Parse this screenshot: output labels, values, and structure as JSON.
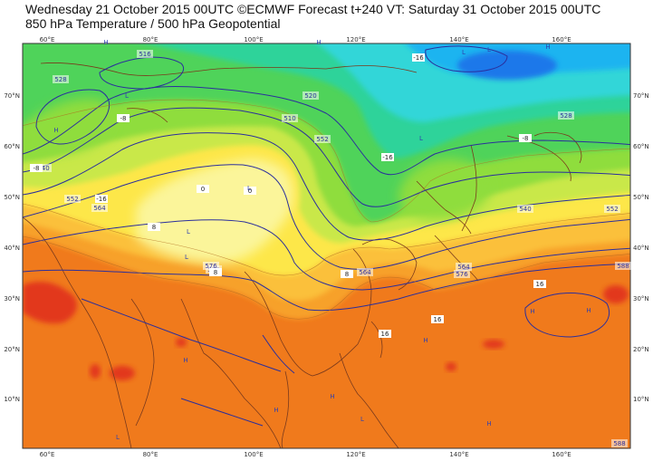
{
  "header": {
    "line1": "Wednesday 21 October 2015 00UTC ©ECMWF Forecast t+240 VT: Saturday 31 October 2015 00UTC",
    "line2": "850 hPa Temperature / 500 hPa Geopotential"
  },
  "map": {
    "lon_labels": [
      "60°E",
      "80°E",
      "100°E",
      "120°E",
      "140°E",
      "160°E"
    ],
    "lat_labels": [
      "70°N",
      "60°N",
      "50°N",
      "40°N",
      "30°N",
      "20°N",
      "10°N"
    ],
    "colors": {
      "hot": "#e2391f",
      "warm_orange": "#f07a1c",
      "orange": "#f7a12b",
      "light_orange": "#fbc03a",
      "yellow": "#fde74a",
      "pale_yellow": "#fbf59a",
      "yellow_green": "#c9e84a",
      "green": "#8fdd3c",
      "bright_green": "#4fd35a",
      "teal_green": "#2fd39a",
      "cyan": "#30d6d8",
      "sky": "#1fb4f0",
      "blue": "#1d78ea",
      "contour": "#2b2f9c",
      "coast": "#7a3a1c"
    },
    "geopotential_labels": [
      "516",
      "528",
      "520",
      "510",
      "552",
      "540",
      "564",
      "552",
      "576",
      "528",
      "540",
      "552",
      "564",
      "576",
      "588",
      "564",
      "588",
      "576"
    ],
    "temperature_labels": [
      "-16",
      "-8",
      "-8",
      "-16",
      "-8",
      "-16",
      "0",
      "0",
      "8",
      "8",
      "8",
      "16",
      "16",
      "16"
    ],
    "pressure_centres": [
      "H",
      "H",
      "H",
      "H",
      "L",
      "L",
      "L",
      "L",
      "L",
      "H",
      "H",
      "H",
      "H",
      "L",
      "H",
      "L",
      "H",
      "H",
      "L",
      "L"
    ]
  }
}
